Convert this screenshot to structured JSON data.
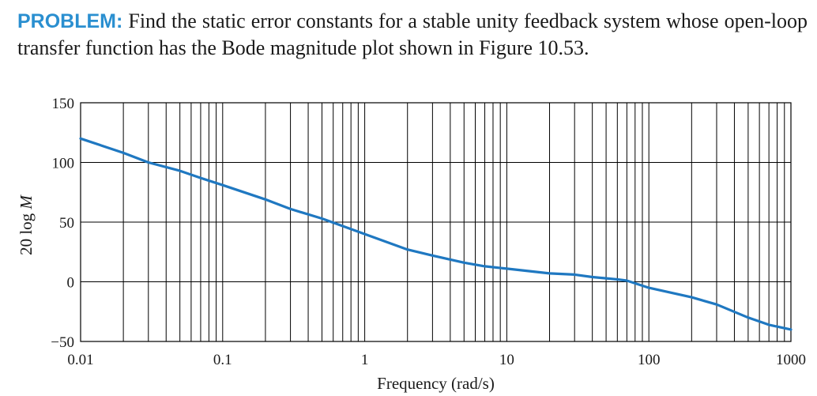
{
  "problem": {
    "label": "PROBLEM:",
    "text": "Find the static error constants for a stable unity feedback system whose open-loop transfer function has the Bode magnitude plot shown in Figure 10.53."
  },
  "colors": {
    "accent": "#2a8fd0",
    "curve": "#1f78c1",
    "grid": "#000000"
  },
  "chart_data": {
    "type": "line",
    "xscale": "log",
    "xlim": [
      0.01,
      1000
    ],
    "ylim": [
      -50,
      150
    ],
    "grid": true,
    "xlabel": "Frequency (rad/s)",
    "ylabel": "20 log M",
    "xticks": [
      0.01,
      0.1,
      1,
      10,
      100,
      1000
    ],
    "xtick_labels": [
      "0.01",
      "0.1",
      "1",
      "10",
      "100",
      "1000"
    ],
    "yticks": [
      150,
      100,
      50,
      0,
      -50
    ],
    "ytick_labels": [
      "150",
      "100",
      "50",
      "0",
      "−50"
    ],
    "series": [
      {
        "x": [
          0.01,
          0.02,
          0.03,
          0.05,
          0.07,
          0.1,
          0.2,
          0.3,
          0.5,
          1,
          2,
          3,
          5,
          7,
          10,
          20,
          30,
          40,
          60,
          70,
          100,
          200,
          300,
          500,
          700,
          1000
        ],
        "y": [
          120,
          108,
          100,
          93,
          87,
          81,
          69,
          61,
          53,
          40,
          27,
          22,
          16,
          13,
          11,
          7,
          6,
          4,
          2,
          1,
          -5,
          -13,
          -19,
          -30,
          -36,
          -40
        ]
      }
    ]
  }
}
